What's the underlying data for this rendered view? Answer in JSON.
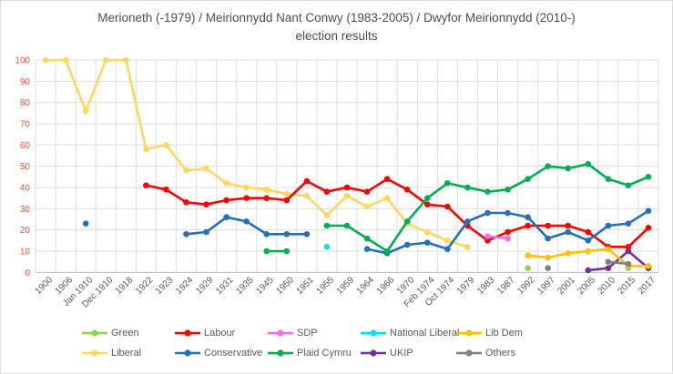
{
  "title": {
    "line1": "Merioneth (-1979) / Meirionnydd Nant Conwy (1983-2005) / Dwyfor Meirionnydd (2010-)",
    "line2": "election results"
  },
  "colors": {
    "background": "#ffffff",
    "border": "#dddddd",
    "gridline": "#dedede",
    "axis_line": "#c0c0c0",
    "y_tick_text": "#e8503a",
    "x_tick_text": "#595959",
    "title_text": "#4d4d4d",
    "legend_text": "#595959"
  },
  "chart_data": {
    "type": "line",
    "title": "Merioneth (-1979) / Meirionnydd Nant Conwy (1983-2005) / Dwyfor Meirionnydd (2010-) election results",
    "xlabel": "",
    "ylabel": "",
    "ylim": [
      0,
      100
    ],
    "y_ticks": [
      0,
      10,
      20,
      30,
      40,
      50,
      60,
      70,
      80,
      90,
      100
    ],
    "grid": true,
    "legend_position": "bottom",
    "x_label_rotation": -45,
    "categories": [
      "1900",
      "1906",
      "Jan 1910",
      "Dec 1910",
      "1918",
      "1922",
      "1923",
      "1924",
      "1929",
      "1931",
      "1935",
      "1945",
      "1950",
      "1951",
      "1955",
      "1959",
      "1964",
      "1966",
      "1970",
      "Feb 1974",
      "Oct 1974",
      "1979",
      "1983",
      "1987",
      "1992",
      "1997",
      "2001",
      "2005",
      "2010",
      "2015",
      "2017"
    ],
    "series": [
      {
        "name": "Green",
        "color": "#92D050",
        "values": [
          null,
          null,
          null,
          null,
          null,
          null,
          null,
          null,
          null,
          null,
          null,
          null,
          null,
          null,
          null,
          null,
          null,
          null,
          null,
          null,
          null,
          null,
          null,
          null,
          2,
          null,
          null,
          null,
          null,
          2,
          null
        ]
      },
      {
        "name": "Liberal",
        "color": "#FFD75C",
        "values": [
          100,
          100,
          76,
          100,
          100,
          58,
          60,
          48,
          49,
          42,
          40,
          39,
          37,
          36,
          27,
          36,
          31,
          35,
          23,
          19,
          15,
          12,
          null,
          null,
          null,
          null,
          null,
          null,
          null,
          null,
          null
        ]
      },
      {
        "name": "Labour",
        "color": "#FF0000",
        "values": [
          null,
          null,
          null,
          null,
          null,
          41,
          39,
          33,
          32,
          34,
          35,
          35,
          34,
          43,
          38,
          40,
          38,
          44,
          39,
          32,
          31,
          22,
          15,
          19,
          22,
          22,
          22,
          19,
          12,
          12,
          21
        ]
      },
      {
        "name": "Conservative",
        "color": "#2070C0",
        "values": [
          null,
          null,
          23,
          null,
          null,
          null,
          null,
          18,
          19,
          26,
          24,
          18,
          18,
          18,
          null,
          null,
          11,
          9,
          13,
          14,
          11,
          24,
          28,
          28,
          26,
          16,
          19,
          15,
          22,
          23,
          29
        ]
      },
      {
        "name": "SDP",
        "color": "#F46CE8",
        "values": [
          null,
          null,
          null,
          null,
          null,
          null,
          null,
          null,
          null,
          null,
          null,
          null,
          null,
          null,
          null,
          null,
          null,
          null,
          null,
          null,
          null,
          null,
          17,
          16,
          null,
          null,
          null,
          null,
          null,
          null,
          null
        ]
      },
      {
        "name": "Plaid Cymru",
        "color": "#00B050",
        "values": [
          null,
          null,
          null,
          null,
          null,
          null,
          null,
          null,
          null,
          null,
          null,
          10,
          10,
          null,
          22,
          22,
          16,
          10,
          24,
          35,
          42,
          40,
          38,
          39,
          44,
          50,
          49,
          51,
          44,
          41,
          45
        ]
      },
      {
        "name": "National Liberal",
        "color": "#00E3EE",
        "values": [
          null,
          null,
          null,
          null,
          null,
          null,
          null,
          null,
          null,
          null,
          null,
          null,
          null,
          null,
          12,
          null,
          null,
          null,
          null,
          null,
          null,
          null,
          null,
          null,
          null,
          null,
          null,
          null,
          null,
          null,
          null
        ]
      },
      {
        "name": "UKIP",
        "color": "#7030A0",
        "values": [
          null,
          null,
          null,
          null,
          null,
          null,
          null,
          null,
          null,
          null,
          null,
          null,
          null,
          null,
          null,
          null,
          null,
          null,
          null,
          null,
          null,
          null,
          null,
          null,
          null,
          null,
          null,
          1,
          2,
          10,
          2
        ]
      },
      {
        "name": "Lib Dem",
        "color": "#FFC000",
        "values": [
          null,
          null,
          null,
          null,
          null,
          null,
          null,
          null,
          null,
          null,
          null,
          null,
          null,
          null,
          null,
          null,
          null,
          null,
          null,
          null,
          null,
          null,
          null,
          null,
          8,
          7,
          9,
          10,
          11,
          3,
          3
        ]
      },
      {
        "name": "Others",
        "color": "#808080",
        "values": [
          null,
          null,
          null,
          null,
          null,
          null,
          null,
          null,
          null,
          null,
          null,
          null,
          null,
          null,
          null,
          null,
          null,
          null,
          null,
          null,
          null,
          null,
          null,
          null,
          null,
          2,
          null,
          null,
          5,
          4,
          null
        ]
      }
    ],
    "legend_rows": [
      [
        "Green",
        "Labour",
        "SDP",
        "National Liberal",
        "Lib Dem"
      ],
      [
        "Liberal",
        "Conservative",
        "Plaid Cymru",
        "UKIP",
        "Others"
      ]
    ]
  }
}
